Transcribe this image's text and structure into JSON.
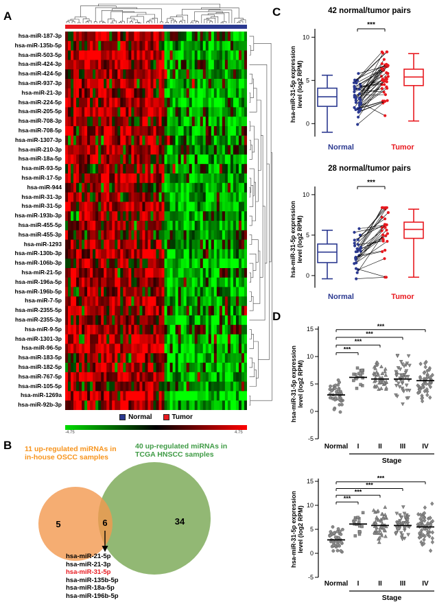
{
  "panels": {
    "a": {
      "label": "A",
      "legend": [
        {
          "label": "Normal",
          "color": "#2b3990"
        },
        {
          "label": "Tumor",
          "color": "#e8191f"
        }
      ],
      "colorbar_min": "-4.75",
      "colorbar_max": "4.75"
    },
    "b": {
      "label": "B",
      "left_title_line1": "11 up-regulated miRNAs in",
      "left_title_line2": "in-house OSCC samples",
      "right_title_line1": "40 up-regulated miRNAs in",
      "right_title_line2": "TCGA HNSCC samples",
      "left_only": "5",
      "overlap": "6",
      "right_only": "34"
    },
    "c": {
      "label": "C"
    },
    "d": {
      "label": "D"
    }
  },
  "chart_data": [
    {
      "type": "heatmap",
      "rows": [
        "hsa-miR-187-3p",
        "hsa-miR-135b-5p",
        "hsa-miR-503-5p",
        "hsa-miR-424-3p",
        "hsa-miR-424-5p",
        "hsa-miR-937-3p",
        "hsa-miR-21-3p",
        "hsa-miR-224-5p",
        "hsa-miR-205-5p",
        "hsa-miR-708-3p",
        "hsa-miR-708-5p",
        "hsa-miR-1307-3p",
        "hsa-miR-210-3p",
        "hsa-miR-18a-5p",
        "hsa-miR-93-5p",
        "hsa-miR-17-5p",
        "hsa-miR-944",
        "hsa-miR-31-3p",
        "hsa-miR-31-5p",
        "hsa-miR-193b-3p",
        "hsa-miR-455-5p",
        "hsa-miR-455-3p",
        "hsa-miR-1293",
        "hsa-miR-130b-3p",
        "hsa-miR-106b-3p",
        "hsa-miR-21-5p",
        "hsa-miR-196a-5p",
        "hsa-miR-196b-5p",
        "hsa-miR-7-5p",
        "hsa-miR-2355-5p",
        "hsa-miR-2355-3p",
        "hsa-miR-9-5p",
        "hsa-miR-1301-3p",
        "hsa-miR-96-5p",
        "hsa-miR-183-5p",
        "hsa-miR-182-5p",
        "hsa-miR-767-5p",
        "hsa-miR-105-5p",
        "hsa-miR-1269a",
        "hsa-miR-92b-3p"
      ],
      "col_groups": [
        {
          "name": "Tumor",
          "color": "#e8191f",
          "fraction": 0.54
        },
        {
          "name": "Normal",
          "color": "#2b3990",
          "fraction": 0.46
        }
      ],
      "n_cols": 66,
      "scale": {
        "min": -4.75,
        "max": 4.75,
        "low_color": "#00dc00",
        "mid_color": "#000000",
        "high_color": "#ff0000"
      }
    },
    {
      "type": "venn",
      "sets": [
        {
          "label": "11 up-regulated miRNAs in in-house OSCC samples",
          "only": 5,
          "color": "#f7941d"
        },
        {
          "label": "40 up-regulated miRNAs in TCGA HNSCC samples",
          "only": 34,
          "color": "#3f9b45"
        }
      ],
      "overlap": 6,
      "overlap_members": [
        "hsa-miR-21-5p",
        "hsa-miR-21-3p",
        "hsa-miR-31-5p",
        "hsa-miR-135b-5p",
        "hsa-miR-18a-5p",
        "hsa-miR-196b-5p"
      ],
      "highlighted_member": "hsa-miR-31-5p",
      "highlight_color": "#e8191f"
    },
    {
      "type": "box",
      "title": "42 normal/tumor pairs",
      "ylabel": "hsa-miR-31-5p expression level (log2 RPM)",
      "ylabel_lines": [
        "hsa-miR-31-5p expression",
        "level (log2 RPM)"
      ],
      "yticks": [
        0,
        5,
        10
      ],
      "ylim": [
        -1.5,
        10.5
      ],
      "n_pairs": 42,
      "significance": "***",
      "groups": [
        {
          "name": "Normal",
          "color": "#2b3990",
          "min": -1.0,
          "q1": 2.0,
          "median": 3.1,
          "q3": 4.1,
          "max": 5.6
        },
        {
          "name": "Tumor",
          "color": "#e8191f",
          "min": 0.3,
          "q1": 4.4,
          "median": 5.4,
          "q3": 6.3,
          "max": 8.1
        }
      ]
    },
    {
      "type": "box",
      "title": "28 normal/tumor pairs",
      "ylabel": "hsa-miR-31-5p expression level (log2 RPM)",
      "ylabel_lines": [
        "hsa-miR-31-5p expression",
        "level (log2 RPM)"
      ],
      "yticks": [
        0,
        5,
        10
      ],
      "ylim": [
        -1.5,
        10.5
      ],
      "n_pairs": 28,
      "significance": "***",
      "groups": [
        {
          "name": "Normal",
          "color": "#2b3990",
          "min": -0.4,
          "q1": 1.6,
          "median": 2.9,
          "q3": 3.9,
          "max": 5.6
        },
        {
          "name": "Tumor",
          "color": "#e8191f",
          "min": -0.2,
          "q1": 4.6,
          "median": 5.7,
          "q3": 6.6,
          "max": 8.2
        }
      ]
    },
    {
      "type": "scatter",
      "title": "",
      "xlabel": "Stage",
      "ylabel": "hsa-miR-31-5p expression level (log2 RPM)",
      "ylabel_lines": [
        "hsa-miR-31-5p expression",
        "level (log2 RPM)"
      ],
      "ylim": [
        -5,
        15
      ],
      "yticks": [
        -5,
        0,
        5,
        10,
        15
      ],
      "categories": [
        "Normal",
        "I",
        "II",
        "III",
        "IV"
      ],
      "groups": [
        {
          "name": "Normal",
          "n": 40,
          "mean": 3.0,
          "sd": 1.3,
          "marker": "circle"
        },
        {
          "name": "I",
          "n": 17,
          "mean": 6.2,
          "sd": 1.2,
          "marker": "square"
        },
        {
          "name": "II",
          "n": 42,
          "mean": 5.9,
          "sd": 1.6,
          "marker": "triangle-up"
        },
        {
          "name": "III",
          "n": 46,
          "mean": 5.9,
          "sd": 1.9,
          "marker": "triangle-down"
        },
        {
          "name": "IV",
          "n": 56,
          "mean": 5.6,
          "sd": 2.1,
          "marker": "diamond"
        }
      ],
      "comparisons": [
        {
          "a": "Normal",
          "b": "I",
          "label": "***"
        },
        {
          "a": "Normal",
          "b": "II",
          "label": "***"
        },
        {
          "a": "Normal",
          "b": "III",
          "label": "***"
        },
        {
          "a": "Normal",
          "b": "IV",
          "label": "***"
        }
      ]
    },
    {
      "type": "scatter",
      "title": "",
      "xlabel": "Stage",
      "ylabel": "hsa-miR-31-5p expression level (log2 RPM)",
      "ylabel_lines": [
        "hsa-miR-31-5p expression",
        "level (log2 RPM)"
      ],
      "ylim": [
        -5,
        15
      ],
      "yticks": [
        -5,
        0,
        5,
        10,
        15
      ],
      "categories": [
        "Normal",
        "I",
        "II",
        "III",
        "IV"
      ],
      "groups": [
        {
          "name": "Normal",
          "n": 42,
          "mean": 2.8,
          "sd": 1.4,
          "marker": "circle"
        },
        {
          "name": "I",
          "n": 16,
          "mean": 6.1,
          "sd": 1.1,
          "marker": "square"
        },
        {
          "name": "II",
          "n": 44,
          "mean": 5.8,
          "sd": 1.7,
          "marker": "triangle-up"
        },
        {
          "name": "III",
          "n": 45,
          "mean": 5.8,
          "sd": 1.9,
          "marker": "triangle-down"
        },
        {
          "name": "IV",
          "n": 58,
          "mean": 5.5,
          "sd": 2.2,
          "marker": "diamond"
        }
      ],
      "comparisons": [
        {
          "a": "Normal",
          "b": "I",
          "label": "***"
        },
        {
          "a": "Normal",
          "b": "II",
          "label": "***"
        },
        {
          "a": "Normal",
          "b": "III",
          "label": "***"
        },
        {
          "a": "Normal",
          "b": "IV",
          "label": "***"
        }
      ]
    }
  ]
}
